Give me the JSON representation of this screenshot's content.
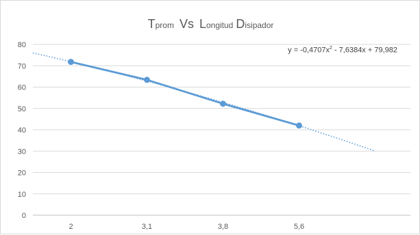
{
  "title": {
    "main_initial": "T",
    "main_subscript": "prom",
    "vs": "Vs",
    "w1_initial": "L",
    "w1_rest": "ongitud",
    "w2_initial": "D",
    "w2_rest": "isipador"
  },
  "trendline": {
    "label_prefix": "y = -0,4707x",
    "label_exponent": "2",
    "label_suffix": " - 7,6384x + 79,982",
    "a": -0.4707,
    "b": -7.6384,
    "c": 79.982,
    "x_range": [
      0.5,
      5.0
    ],
    "style": "dotted",
    "color": "#5b9bd5"
  },
  "chart_data": {
    "type": "line",
    "title": "Tprom Vs Longitud Disipador",
    "categories": [
      "2",
      "3,1",
      "3,8",
      "5,6"
    ],
    "series": [
      {
        "values": [
          71.8,
          63.4,
          52.2,
          42.0
        ],
        "color": "#5b9bd5",
        "markers": true
      }
    ],
    "ylim": [
      0,
      80
    ],
    "yticks": [
      0,
      10,
      20,
      30,
      40,
      50,
      60,
      70,
      80
    ],
    "xlabel": "",
    "ylabel": "",
    "grid": true,
    "legend": "none"
  }
}
